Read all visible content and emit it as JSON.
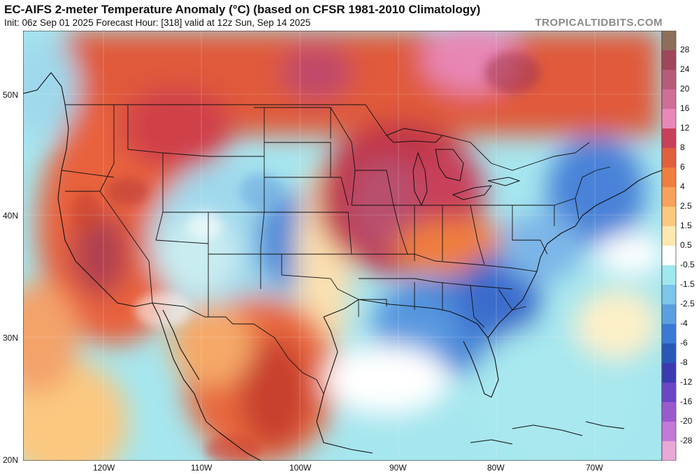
{
  "header": {
    "title": "EC-AIFS 2-meter Temperature Anomaly (°C) (based on CFSR 1981-2010 Climatology)",
    "subtitle": "Init: 06z Sep 01 2025   Forecast Hour: [318]   valid at 12z Sun, Sep 14 2025",
    "brand": "TROPICALTIDBITS.COM"
  },
  "axes": {
    "lat_labels": [
      "50N",
      "40N",
      "30N",
      "20N"
    ],
    "lon_labels": [
      "120W",
      "110W",
      "100W",
      "90W",
      "80W",
      "70W"
    ]
  },
  "legend": {
    "labels": [
      "28",
      "24",
      "20",
      "16",
      "12",
      "8",
      "6",
      "4",
      "2.5",
      "1.5",
      "0.5",
      "-0.5",
      "-1.5",
      "-2.5",
      "-4",
      "-6",
      "-8",
      "-12",
      "-16",
      "-20",
      "-28"
    ],
    "colors": [
      "#8c6e5a",
      "#a0455c",
      "#b85a7a",
      "#cf6e96",
      "#e888b8",
      "#c8405a",
      "#e0603c",
      "#f07e3e",
      "#f8a15a",
      "#fbc880",
      "#fde8b0",
      "#ffffff",
      "#9fe8ee",
      "#7cc6ea",
      "#5aa0e0",
      "#3a7ad6",
      "#2858b8",
      "#3a3ab2",
      "#6a46c6",
      "#9a5ace",
      "#c478d8",
      "#e8a8d8"
    ]
  },
  "regions": {
    "warm_west": "warm",
    "cool_rockies": "cool",
    "hot_great_lakes": "hot",
    "cool_southeast": "cool",
    "cool_northeast": "cool"
  }
}
